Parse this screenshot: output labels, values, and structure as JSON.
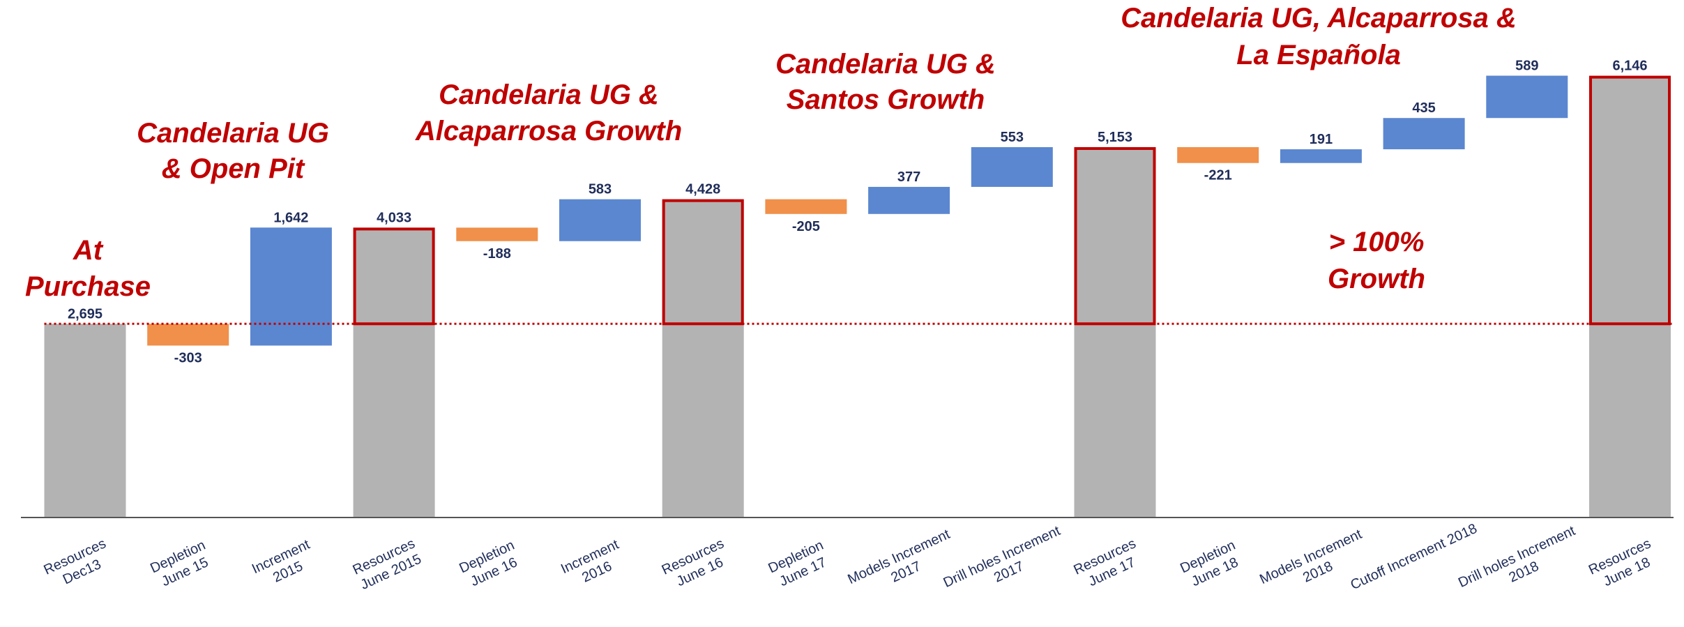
{
  "chart_data": {
    "type": "waterfall",
    "categories": [
      [
        "Resources",
        "Dec13"
      ],
      [
        "Depletion",
        "June 15"
      ],
      [
        "Increment",
        "2015"
      ],
      [
        "Resources",
        "June 2015"
      ],
      [
        "Depletion",
        "June 16"
      ],
      [
        "Increment",
        "2016"
      ],
      [
        "Resources",
        "June 16"
      ],
      [
        "Depletion",
        "June 17"
      ],
      [
        "Models Increment",
        "2017"
      ],
      [
        "Drill holes Increment",
        "2017"
      ],
      [
        "Resources",
        "June 17"
      ],
      [
        "Depletion",
        "June 18"
      ],
      [
        "Models Increment",
        "2018"
      ],
      [
        "Cutoff Increment 2018"
      ],
      [
        "Drill holes Increment",
        "2018"
      ],
      [
        "Resources",
        "June 18"
      ]
    ],
    "values": [
      2695,
      -303,
      1642,
      4033,
      -188,
      583,
      4428,
      -205,
      377,
      553,
      5153,
      -221,
      191,
      435,
      589,
      6146
    ],
    "value_labels": [
      "2,695",
      "-303",
      "1,642",
      "4,033",
      "-188",
      "583",
      "4,428",
      "-205",
      "377",
      "553",
      "5,153",
      "-221",
      "191",
      "435",
      "589",
      "6,146"
    ],
    "measure": [
      "absolute",
      "relative",
      "relative",
      "absolute",
      "relative",
      "relative",
      "absolute",
      "relative",
      "relative",
      "relative",
      "absolute",
      "relative",
      "relative",
      "relative",
      "relative",
      "absolute"
    ],
    "colors": [
      "#b3b3b3",
      "#f0904a",
      "#5b87d0",
      "#b3b3b3",
      "#f0904a",
      "#5b87d0",
      "#b3b3b3",
      "#f0904a",
      "#5b87d0",
      "#5b87d0",
      "#b3b3b3",
      "#f0904a",
      "#5b87d0",
      "#5b87d0",
      "#5b87d0",
      "#b3b3b3"
    ],
    "outline_colors": [
      null,
      null,
      null,
      "#c00000",
      null,
      null,
      "#c00000",
      null,
      null,
      null,
      "#c00000",
      null,
      null,
      null,
      null,
      "#c00000"
    ],
    "reference_line_color": "#c00000",
    "ylim": [
      0,
      7200
    ],
    "annotations": [
      [
        "At",
        "Purchase"
      ],
      [
        "Candelaria UG",
        "& Open Pit"
      ],
      [
        "Candelaria UG &",
        "Alcaparrosa Growth"
      ],
      [
        "Candelaria UG &",
        "Santos Growth"
      ],
      [
        "Candelaria UG,  Alcaparrosa &",
        "La Española"
      ],
      [
        "> 100%",
        "Growth"
      ]
    ]
  }
}
